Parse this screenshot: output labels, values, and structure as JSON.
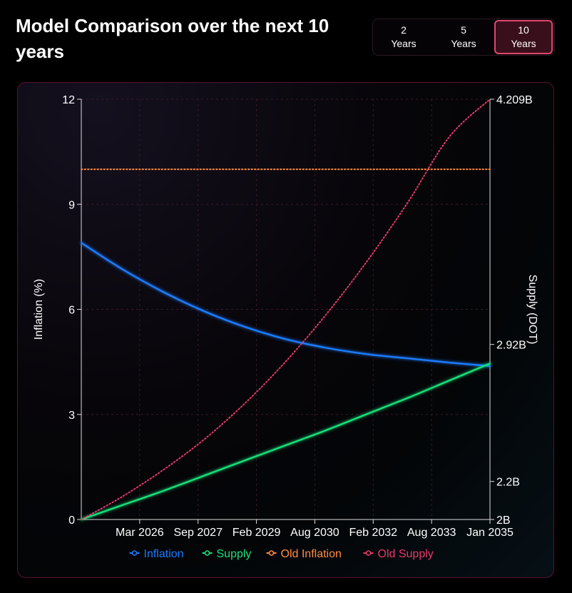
{
  "header": {
    "title": "Model Comparison over the next 10 years"
  },
  "range_selector": [
    {
      "number": "2",
      "unit": "Years",
      "active": false
    },
    {
      "number": "5",
      "unit": "Years",
      "active": false
    },
    {
      "number": "10",
      "unit": "Years",
      "active": true
    }
  ],
  "chart_data": {
    "type": "line",
    "x_labels": [
      "Mar 2026",
      "Sep 2027",
      "Feb 2029",
      "Aug 2030",
      "Feb 2032",
      "Aug 2033",
      "Jan 2035"
    ],
    "y_left": {
      "label": "Inflation (%)",
      "range": [
        0,
        12
      ],
      "ticks": [
        "0",
        "3",
        "6",
        "9",
        "12"
      ]
    },
    "y_right": {
      "label": "Supply (DOT)",
      "range": [
        2000000000,
        4209000000
      ],
      "ticks": [
        {
          "value": 2000000000,
          "label": "2B"
        },
        {
          "value": 2200000000,
          "label": "2.2B"
        },
        {
          "value": 2920000000,
          "label": "2.92B"
        },
        {
          "value": 4209000000,
          "label": "4.209B"
        }
      ]
    },
    "x_range": [
      0,
      10
    ],
    "series": [
      {
        "name": "Inflation",
        "axis": "left",
        "color": "#1a7cff",
        "style": "solid",
        "x": [
          0,
          1,
          2,
          3,
          4,
          5,
          6,
          7,
          8,
          9,
          10
        ],
        "values": [
          7.9,
          7.15,
          6.5,
          5.95,
          5.5,
          5.15,
          4.9,
          4.72,
          4.6,
          4.48,
          4.38
        ]
      },
      {
        "name": "Supply",
        "axis": "right",
        "color": "#19e07a",
        "style": "solid",
        "x": [
          0,
          1,
          2,
          3,
          4,
          5,
          6,
          7,
          8,
          9,
          10
        ],
        "values": [
          2000000000,
          2075000000,
          2150000000,
          2230000000,
          2310000000,
          2390000000,
          2470000000,
          2555000000,
          2640000000,
          2730000000,
          2820000000
        ]
      },
      {
        "name": "Old Inflation",
        "axis": "left",
        "color": "#ff8a3d",
        "style": "dotted",
        "x": [
          0,
          10
        ],
        "values": [
          10,
          10
        ]
      },
      {
        "name": "Old Supply",
        "axis": "right",
        "color": "#e8386a",
        "style": "dotted",
        "x": [
          0,
          1,
          2,
          3,
          4,
          5,
          6,
          7,
          8,
          9,
          10
        ],
        "values": [
          2000000000,
          2120000000,
          2260000000,
          2420000000,
          2610000000,
          2830000000,
          3080000000,
          3360000000,
          3670000000,
          4010000000,
          4209000000
        ]
      }
    ]
  }
}
